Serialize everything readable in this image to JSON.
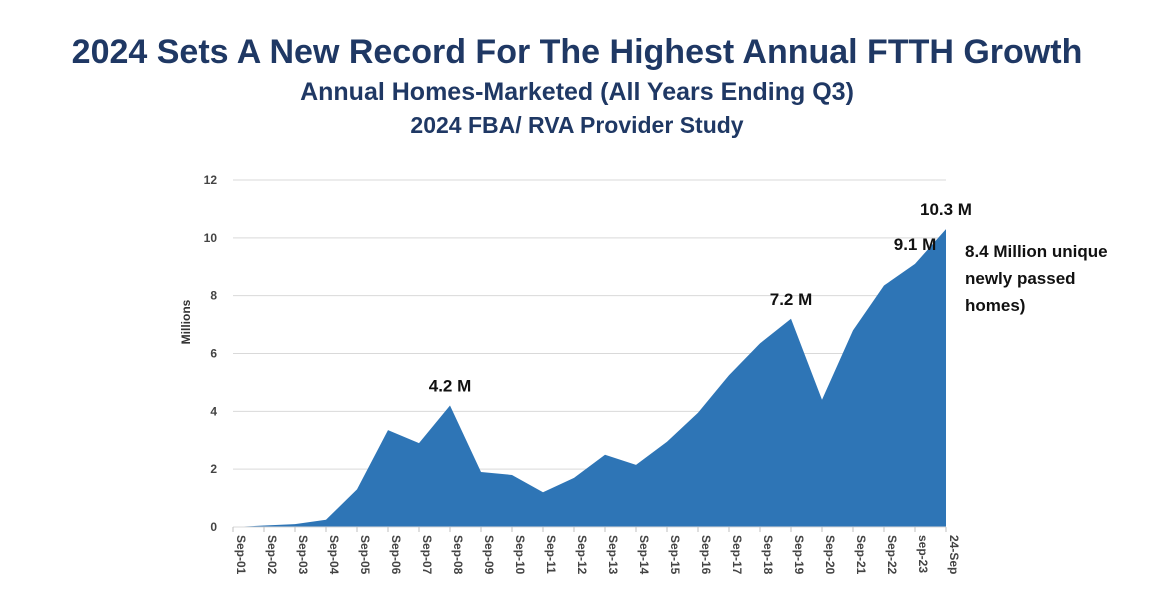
{
  "chart_data": {
    "type": "area",
    "title": "2024 Sets A New Record For The Highest Annual FTTH Growth",
    "subtitle": "Annual Homes-Marketed (All Years Ending Q3)",
    "subtitle2": "2024 FBA/ RVA Provider Study",
    "ylabel": "Millions",
    "xlabel": "",
    "ylim": [
      0,
      12
    ],
    "yticks": [
      0,
      2,
      4,
      6,
      8,
      10,
      12
    ],
    "grid": true,
    "color": "#2e75b6",
    "categories": [
      "Sep-01",
      "Sep-02",
      "Sep-03",
      "Sep-04",
      "Sep-05",
      "Sep-06",
      "Sep-07",
      "Sep-08",
      "Sep-09",
      "Sep-10",
      "Sep-11",
      "Sep-12",
      "Sep-13",
      "Sep-14",
      "Sep-15",
      "Sep-16",
      "Sep-17",
      "Sep-18",
      "Sep-19",
      "Sep-20",
      "Sep-21",
      "Sep-22",
      "sep-23",
      "24-Sep"
    ],
    "series": [
      {
        "values": [
          0.0,
          0.05,
          0.1,
          0.25,
          1.3,
          3.35,
          2.9,
          4.2,
          1.9,
          1.8,
          1.2,
          1.7,
          2.5,
          2.15,
          2.95,
          3.95,
          5.25,
          6.35,
          7.2,
          4.4,
          6.8,
          8.35,
          9.1,
          10.3
        ]
      }
    ],
    "annotations": [
      {
        "text": "4.2 M",
        "category_index": 7
      },
      {
        "text": "7.2 M",
        "category_index": 18
      },
      {
        "text": "9.1 M",
        "category_index": 22
      },
      {
        "text": "10.3 M",
        "category_index": 23
      }
    ],
    "side_note": [
      "8.4 Million unique",
      "newly passed",
      "homes)"
    ]
  }
}
